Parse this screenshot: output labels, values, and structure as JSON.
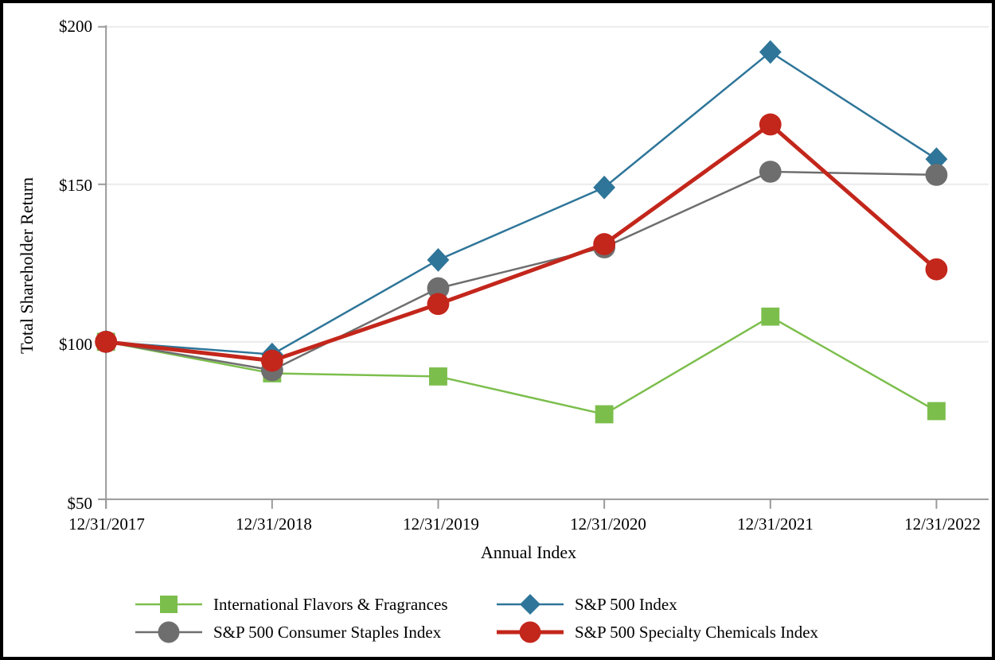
{
  "figure": {
    "frame_color": "#000000",
    "background_color": "#FFFFFF"
  },
  "chart_data": {
    "type": "line",
    "title": "",
    "xlabel": "Annual Index",
    "ylabel": "Total Shareholder Return",
    "categories": [
      "12/31/2017",
      "12/31/2018",
      "12/31/2019",
      "12/31/2020",
      "12/31/2021",
      "12/31/2022"
    ],
    "y_tick_labels": [
      "$200",
      "$150",
      "$100",
      "$50"
    ],
    "y_tick_values": [
      200,
      150,
      100,
      50
    ],
    "ylim": [
      50,
      200
    ],
    "grid": "horizontal",
    "gridline_color": "#EBEBEB",
    "axis_color": "#999999",
    "text_color": "#000000",
    "legend_position": "bottom-two-columns",
    "series": [
      {
        "name": "International Flavors & Fragrances",
        "color": "#7CBE4C",
        "marker": "square",
        "line_width": 2.5,
        "values": [
          100,
          90,
          89,
          77,
          108,
          78
        ]
      },
      {
        "name": "S&P 500 Index",
        "color": "#2E7599",
        "marker": "diamond",
        "line_width": 2.5,
        "values": [
          100,
          96,
          126,
          149,
          192,
          158
        ]
      },
      {
        "name": "S&P 500 Consumer Staples Index",
        "color": "#6E6E6E",
        "marker": "circle",
        "line_width": 2.5,
        "values": [
          100,
          91,
          117,
          130,
          154,
          153
        ]
      },
      {
        "name": "S&P 500 Specialty Chemicals Index",
        "color": "#C3261B",
        "marker": "circle",
        "line_width": 5,
        "values": [
          100,
          94,
          112,
          131,
          169,
          123
        ]
      }
    ]
  }
}
